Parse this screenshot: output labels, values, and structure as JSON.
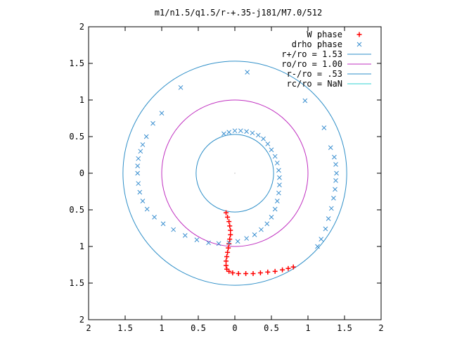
{
  "chart_data": {
    "type": "scatter",
    "title": "m1/n1.5/q1.5/r-+.35-j181/M7.0/512",
    "xlabel": "",
    "ylabel": "",
    "xlim": [
      -2,
      2
    ],
    "ylim": [
      -2,
      2
    ],
    "grid": false,
    "legend_position": "top-right",
    "x_ticks": [
      {
        "value": -2,
        "label": "2"
      },
      {
        "value": -1.5,
        "label": "1.5"
      },
      {
        "value": -1,
        "label": "1"
      },
      {
        "value": -0.5,
        "label": "0.5"
      },
      {
        "value": 0,
        "label": "0"
      },
      {
        "value": 0.5,
        "label": "0.5"
      },
      {
        "value": 1,
        "label": "1"
      },
      {
        "value": 1.5,
        "label": "1.5"
      },
      {
        "value": 2,
        "label": "2"
      }
    ],
    "y_ticks": [
      {
        "value": 2,
        "label": "2"
      },
      {
        "value": 1.5,
        "label": "1.5"
      },
      {
        "value": 1,
        "label": "1"
      },
      {
        "value": 0.5,
        "label": "0.5"
      },
      {
        "value": 0,
        "label": "0"
      },
      {
        "value": -0.5,
        "label": "0.5"
      },
      {
        "value": -1,
        "label": "1"
      },
      {
        "value": -1.5,
        "label": "1.5"
      },
      {
        "value": -2,
        "label": "2"
      }
    ],
    "series": [
      {
        "name": "W phase",
        "marker": "plus",
        "color": "#ff0000",
        "points": [
          [
            -0.12,
            -0.54
          ],
          [
            -0.1,
            -0.6
          ],
          [
            -0.08,
            -0.66
          ],
          [
            -0.07,
            -0.72
          ],
          [
            -0.06,
            -0.78
          ],
          [
            -0.06,
            -0.84
          ],
          [
            -0.07,
            -0.9
          ],
          [
            -0.08,
            -0.96
          ],
          [
            -0.09,
            -1.02
          ],
          [
            -0.1,
            -1.08
          ],
          [
            -0.11,
            -1.14
          ],
          [
            -0.12,
            -1.2
          ],
          [
            -0.12,
            -1.26
          ],
          [
            -0.11,
            -1.31
          ],
          [
            -0.08,
            -1.34
          ],
          [
            -0.03,
            -1.36
          ],
          [
            0.05,
            -1.37
          ],
          [
            0.15,
            -1.37
          ],
          [
            0.25,
            -1.37
          ],
          [
            0.35,
            -1.36
          ],
          [
            0.45,
            -1.35
          ],
          [
            0.55,
            -1.34
          ],
          [
            0.65,
            -1.32
          ],
          [
            0.73,
            -1.3
          ],
          [
            0.8,
            -1.28
          ]
        ]
      },
      {
        "name": "drho phase",
        "marker": "cross",
        "color": "#3a8fd0",
        "points": [
          [
            -0.15,
            0.54
          ],
          [
            -0.08,
            0.56
          ],
          [
            0.0,
            0.58
          ],
          [
            0.08,
            0.58
          ],
          [
            0.16,
            0.57
          ],
          [
            0.24,
            0.55
          ],
          [
            0.32,
            0.52
          ],
          [
            0.39,
            0.47
          ],
          [
            0.45,
            0.4
          ],
          [
            0.5,
            0.32
          ],
          [
            0.55,
            0.23
          ],
          [
            0.58,
            0.14
          ],
          [
            0.6,
            0.04
          ],
          [
            0.61,
            -0.06
          ],
          [
            0.61,
            -0.16
          ],
          [
            0.6,
            -0.27
          ],
          [
            0.58,
            -0.38
          ],
          [
            0.55,
            -0.49
          ],
          [
            0.5,
            -0.6
          ],
          [
            0.44,
            -0.69
          ],
          [
            0.36,
            -0.77
          ],
          [
            0.27,
            -0.84
          ],
          [
            0.16,
            -0.89
          ],
          [
            0.04,
            -0.93
          ],
          [
            -0.08,
            -0.95
          ],
          [
            -0.22,
            -0.96
          ],
          [
            -0.36,
            -0.95
          ],
          [
            -0.52,
            -0.91
          ],
          [
            -0.68,
            -0.85
          ],
          [
            -0.84,
            -0.77
          ],
          [
            -0.98,
            -0.69
          ],
          [
            -1.1,
            -0.6
          ],
          [
            -1.2,
            -0.49
          ],
          [
            -1.26,
            -0.38
          ],
          [
            -1.3,
            -0.26
          ],
          [
            -1.32,
            -0.14
          ],
          [
            -1.33,
            0.0
          ],
          [
            -1.33,
            0.1
          ],
          [
            -1.32,
            0.2
          ],
          [
            -1.29,
            0.3
          ],
          [
            -1.26,
            0.39
          ],
          [
            -1.21,
            0.5
          ],
          [
            -1.12,
            0.68
          ],
          [
            -1.0,
            0.82
          ],
          [
            -0.74,
            1.17
          ],
          [
            0.17,
            1.38
          ],
          [
            0.96,
            0.99
          ],
          [
            1.22,
            0.62
          ],
          [
            1.31,
            0.35
          ],
          [
            1.36,
            0.22
          ],
          [
            1.38,
            0.12
          ],
          [
            1.39,
            0.0
          ],
          [
            1.38,
            -0.1
          ],
          [
            1.37,
            -0.22
          ],
          [
            1.35,
            -0.34
          ],
          [
            1.32,
            -0.48
          ],
          [
            1.28,
            -0.62
          ],
          [
            1.24,
            -0.76
          ],
          [
            1.18,
            -0.9
          ],
          [
            1.13,
            -1.0
          ]
        ]
      },
      {
        "name": "r+/ro = 1.53",
        "type": "circle",
        "radius": 1.53,
        "color": "#2f8fc8"
      },
      {
        "name": "ro/ro = 1.00",
        "type": "circle",
        "radius": 1.0,
        "color": "#c030c0"
      },
      {
        "name": "r-/ro = .53",
        "type": "circle",
        "radius": 0.53,
        "color": "#2f8fc8"
      },
      {
        "name": "rc/ro = NaN",
        "type": "circle",
        "radius": null,
        "color": "#30d0d0"
      }
    ]
  }
}
